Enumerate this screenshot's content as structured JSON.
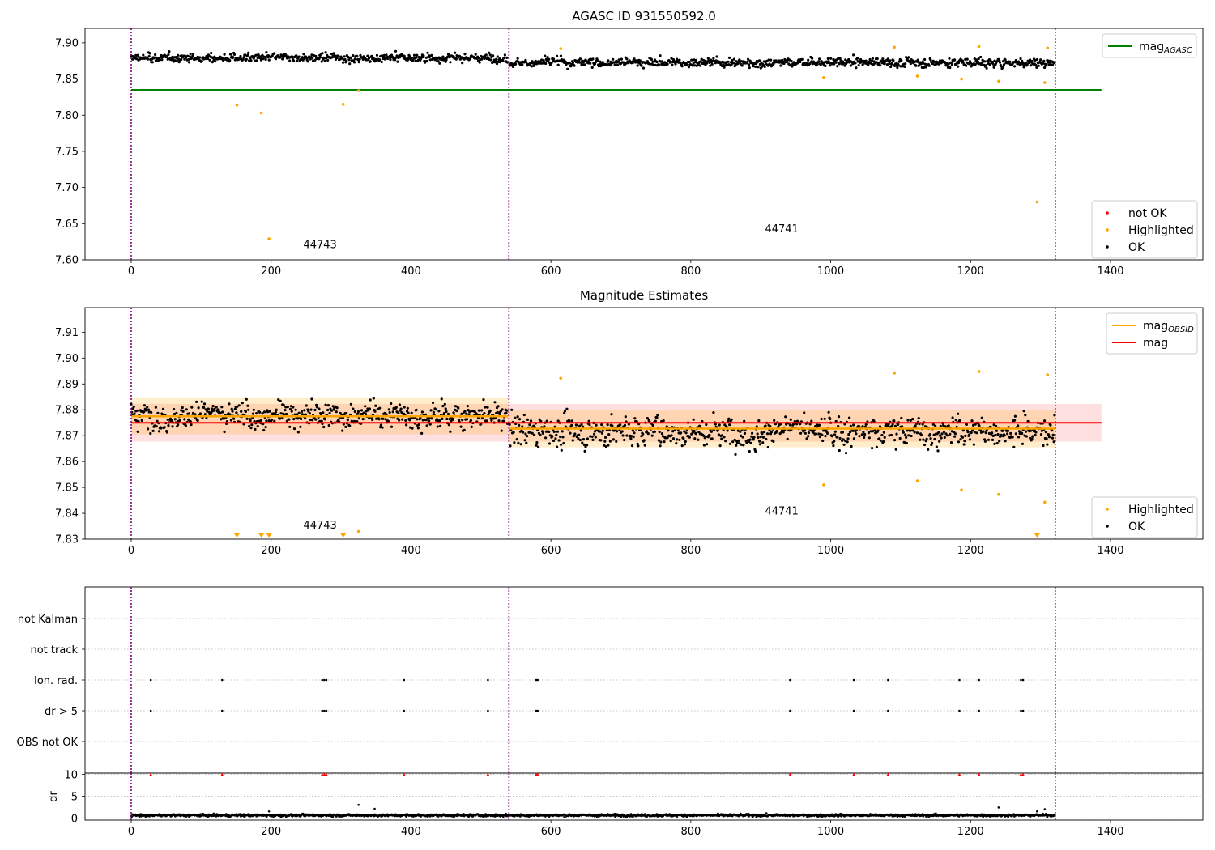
{
  "figure": {
    "panels": [
      {
        "key": "agasc",
        "title": "AGASC ID 931550592.0"
      },
      {
        "key": "estimates",
        "title": "Magnitude Estimates"
      },
      {
        "key": "flags",
        "title": ""
      }
    ]
  },
  "chart_data": [
    {
      "type": "scatter",
      "title": "AGASC ID 931550592.0",
      "xlim": [
        -66,
        1532
      ],
      "ylim": [
        7.6,
        7.92
      ],
      "xticks": [
        0,
        200,
        400,
        600,
        800,
        1000,
        1200,
        1400
      ],
      "yticks": [
        "7.60",
        "7.65",
        "7.70",
        "7.75",
        "7.80",
        "7.85",
        "7.90"
      ],
      "obs_boundaries": [
        0,
        540,
        1321
      ],
      "obs_labels": [
        {
          "text": "44743",
          "x": 270,
          "y": 7.616
        },
        {
          "text": "44741",
          "x": 930,
          "y": 7.638
        }
      ],
      "reference_line": {
        "name": "mag_AGASC",
        "y": 7.835,
        "x": [
          0,
          1387
        ],
        "color": "#008000"
      },
      "ok_series": {
        "name": "OK",
        "color": "#000000",
        "segments": [
          {
            "x_start": 0,
            "x_end": 539,
            "mean": 7.879,
            "spread": 0.007
          },
          {
            "x_start": 541,
            "x_end": 1321,
            "mean": 7.873,
            "spread": 0.008
          }
        ]
      },
      "highlighted": {
        "name": "Highlighted",
        "color": "#ffa500",
        "points": [
          [
            151,
            7.814
          ],
          [
            186,
            7.803
          ],
          [
            197,
            7.629
          ],
          [
            303,
            7.815
          ],
          [
            325,
            7.834
          ],
          [
            614,
            7.892
          ],
          [
            990,
            7.852
          ],
          [
            1091,
            7.894
          ],
          [
            1124,
            7.854
          ],
          [
            1187,
            7.85
          ],
          [
            1212,
            7.895
          ],
          [
            1240,
            7.847
          ],
          [
            1295,
            7.68
          ],
          [
            1306,
            7.845
          ],
          [
            1310,
            7.893
          ]
        ]
      },
      "not_ok": {
        "name": "not OK",
        "color": "#ff0000",
        "points": []
      },
      "legend_top": {
        "position": "top-right",
        "label": "mag",
        "subscript": "AGASC"
      },
      "legend_bottom": {
        "position": "bottom-right",
        "entries": [
          "not OK",
          "Highlighted",
          "OK"
        ]
      }
    },
    {
      "type": "scatter",
      "title": "Magnitude Estimates",
      "xlim": [
        -66,
        1532
      ],
      "ylim": [
        7.83,
        7.9195
      ],
      "xticks": [
        0,
        200,
        400,
        600,
        800,
        1000,
        1200,
        1400
      ],
      "yticks": [
        "7.83",
        "7.84",
        "7.85",
        "7.86",
        "7.87",
        "7.88",
        "7.89",
        "7.90",
        "7.91"
      ],
      "obs_boundaries": [
        0,
        540,
        1321
      ],
      "obs_labels": [
        {
          "text": "44743",
          "x": 270,
          "y": 7.834
        },
        {
          "text": "44741",
          "x": 930,
          "y": 7.8395
        }
      ],
      "mag": {
        "name": "mag",
        "y": 7.875,
        "band": [
          7.8677,
          7.8823
        ],
        "x": [
          0,
          1387
        ],
        "color": "#ff0000"
      },
      "mag_obsid": {
        "name": "mag_OBSID",
        "color": "#ffa500",
        "segments": [
          {
            "x": [
              0,
              539
            ],
            "y": 7.8775,
            "band": [
              7.8705,
              7.8845
            ]
          },
          {
            "x": [
              541,
              1321
            ],
            "y": 7.8727,
            "band": [
              7.8655,
              7.8798
            ]
          }
        ]
      },
      "ok_series": {
        "name": "OK",
        "color": "#000000",
        "segments": [
          {
            "x_start": 0,
            "x_end": 539,
            "mean": 7.878,
            "spread": 0.0065
          },
          {
            "x_start": 541,
            "x_end": 1321,
            "mean": 7.872,
            "spread": 0.0075
          }
        ]
      },
      "highlighted": {
        "name": "Highlighted",
        "color": "#ffa500",
        "points": [
          [
            614,
            7.8922
          ],
          [
            990,
            7.851
          ],
          [
            1091,
            7.8942
          ],
          [
            1124,
            7.8525
          ],
          [
            1187,
            7.849
          ],
          [
            1212,
            7.8948
          ],
          [
            1240,
            7.8473
          ],
          [
            1306,
            7.8443
          ],
          [
            1310,
            7.8935
          ],
          [
            325,
            7.833
          ]
        ],
        "below_range_markers": [
          151,
          186,
          197,
          303,
          1295
        ]
      },
      "legend_top": {
        "position": "top-right",
        "entries": [
          {
            "label": "mag",
            "subscript": "OBSID",
            "color": "#ffa500"
          },
          {
            "label": "mag",
            "subscript": "",
            "color": "#ff0000"
          }
        ]
      },
      "legend_bottom": {
        "position": "bottom-right",
        "entries": [
          "Highlighted",
          "OK"
        ]
      }
    },
    {
      "type": "scatter",
      "xlim": [
        -66,
        1532
      ],
      "xticks": [
        0,
        200,
        400,
        600,
        800,
        1000,
        1200,
        1400
      ],
      "categories": [
        "not Kalman",
        "not track",
        "Ion. rad.",
        "dr > 5",
        "OBS not OK"
      ],
      "obs_boundaries": [
        0,
        540,
        1321
      ],
      "flag_events": {
        "Ion. rad.": [
          28,
          130,
          273,
          276,
          279,
          390,
          510,
          579,
          581,
          942,
          1033,
          1082,
          1184,
          1212,
          1272,
          1275
        ],
        "dr > 5": [
          28,
          130,
          273,
          276,
          279,
          390,
          510,
          579,
          581,
          942,
          1033,
          1082,
          1184,
          1212,
          1272,
          1275
        ]
      },
      "dr_subplot": {
        "ylabel": "dr",
        "ylim": [
          -0.5,
          10.3
        ],
        "yticks": [
          "0",
          "5",
          "10"
        ],
        "clipped_at_10": [
          28,
          130,
          273,
          276,
          279,
          390,
          510,
          579,
          581,
          942,
          1033,
          1082,
          1184,
          1212,
          1272,
          1275
        ],
        "outliers": [
          [
            197,
            1.5
          ],
          [
            325,
            3.0
          ],
          [
            348,
            2.1
          ],
          [
            1240,
            2.4
          ],
          [
            1295,
            1.5
          ],
          [
            1306,
            2.0
          ]
        ],
        "baseline": {
          "mean": 0.6,
          "spread": 0.3,
          "x_range": [
            0,
            1321
          ]
        }
      }
    }
  ]
}
